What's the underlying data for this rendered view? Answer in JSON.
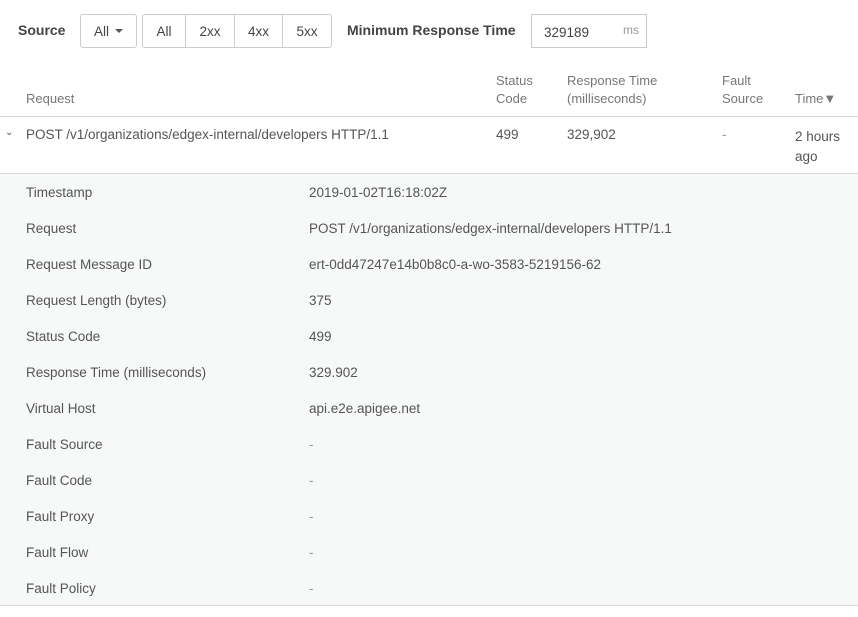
{
  "filters": {
    "source_label": "Source",
    "source_value": "All",
    "status_buttons": [
      "All",
      "2xx",
      "4xx",
      "5xx"
    ],
    "min_response_label": "Minimum Response Time",
    "min_response_value": "329189",
    "min_response_unit": "ms"
  },
  "table": {
    "headers": {
      "request": "Request",
      "status": [
        "Status",
        "Code"
      ],
      "response": [
        "Response Time",
        "(milliseconds)"
      ],
      "fault": [
        "Fault",
        "Source"
      ],
      "time": "Time▼"
    },
    "row": {
      "request": "POST /v1/organizations/edgex-internal/developers HTTP/1.1",
      "status": "499",
      "response": "329,902",
      "fault": "-",
      "time": [
        "2 hours",
        "ago"
      ]
    }
  },
  "details": [
    {
      "k": "Timestamp",
      "v": "2019-01-02T16:18:02Z"
    },
    {
      "k": "Request",
      "v": "POST /v1/organizations/edgex-internal/developers HTTP/1.1"
    },
    {
      "k": "Request Message ID",
      "v": "ert-0dd47247e14b0b8c0-a-wo-3583-5219156-62"
    },
    {
      "k": "Request Length (bytes)",
      "v": "375"
    },
    {
      "k": "Status Code",
      "v": "499"
    },
    {
      "k": "Response Time (milliseconds)",
      "v": "329.902"
    },
    {
      "k": "Virtual Host",
      "v": "api.e2e.apigee.net"
    },
    {
      "k": "Fault Source",
      "v": "-"
    },
    {
      "k": "Fault Code",
      "v": "-"
    },
    {
      "k": "Fault Proxy",
      "v": "-"
    },
    {
      "k": "Fault Flow",
      "v": "-"
    },
    {
      "k": "Fault Policy",
      "v": "-"
    }
  ]
}
